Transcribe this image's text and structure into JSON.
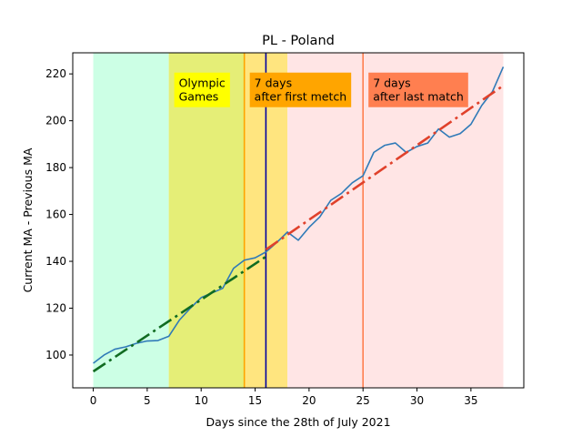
{
  "chart_data": {
    "type": "line",
    "title": "PL - Poland",
    "xlabel": "Days since the 28th of July 2021",
    "ylabel": "Current MA - Previous MA",
    "xlim": [
      -1.9,
      39.9
    ],
    "ylim": [
      86,
      229
    ],
    "xticks": [
      0,
      5,
      10,
      15,
      20,
      25,
      30,
      35
    ],
    "yticks": [
      100,
      120,
      140,
      160,
      180,
      200,
      220
    ],
    "grid": false,
    "regions": [
      {
        "x0": 0,
        "x1": 7,
        "color": "#ccffe5"
      },
      {
        "x0": 7,
        "x1": 14,
        "color": "#e5ee77"
      },
      {
        "x0": 14,
        "x1": 18,
        "color": "#ffe57f"
      },
      {
        "x0": 18,
        "x1": 38,
        "color": "#ffe5e5"
      }
    ],
    "vlines": [
      {
        "x": 14,
        "color": "#ffa500"
      },
      {
        "x": 16,
        "color": "#0000a0"
      },
      {
        "x": 25,
        "color": "#ff7f50"
      }
    ],
    "series": [
      {
        "color": "#2f7ab8",
        "style": "solid",
        "x": [
          0,
          1,
          2,
          3,
          4,
          5,
          6,
          7,
          8,
          9,
          10,
          11,
          12,
          13,
          14,
          15,
          16,
          17,
          18,
          19,
          20,
          21,
          22,
          23,
          24,
          25,
          26,
          27,
          28,
          29,
          30,
          31,
          32,
          33,
          34,
          35,
          36,
          37,
          38
        ],
        "y": [
          96.5,
          100,
          102.5,
          103.5,
          105,
          106,
          106.2,
          108,
          115,
          120,
          124.5,
          126.5,
          128.5,
          137,
          140.5,
          141.5,
          144,
          148,
          152.5,
          149,
          154.5,
          159,
          166,
          169,
          173.5,
          176.5,
          186.5,
          189.5,
          190.5,
          186.5,
          189,
          190.5,
          196.5,
          193,
          194.5,
          198.5,
          206.5,
          212.5,
          223
        ]
      },
      {
        "color": "#106b21",
        "style": "dashdot",
        "x": [
          0,
          16
        ],
        "y": [
          93,
          142
        ]
      },
      {
        "color": "#e0412b",
        "style": "dashdot",
        "x": [
          16,
          38
        ],
        "y": [
          145,
          215
        ]
      }
    ],
    "annotations": [
      {
        "lines": [
          "Olympic",
          "Games"
        ],
        "bg": "#ffff00",
        "x": 7,
        "y": 219
      },
      {
        "lines": [
          "7 days",
          "after first metch"
        ],
        "bg": "#ffa500",
        "x": 14,
        "y": 219
      },
      {
        "lines": [
          "7 days",
          "after last match"
        ],
        "bg": "#ff7f50",
        "x": 25,
        "y": 219
      }
    ]
  }
}
